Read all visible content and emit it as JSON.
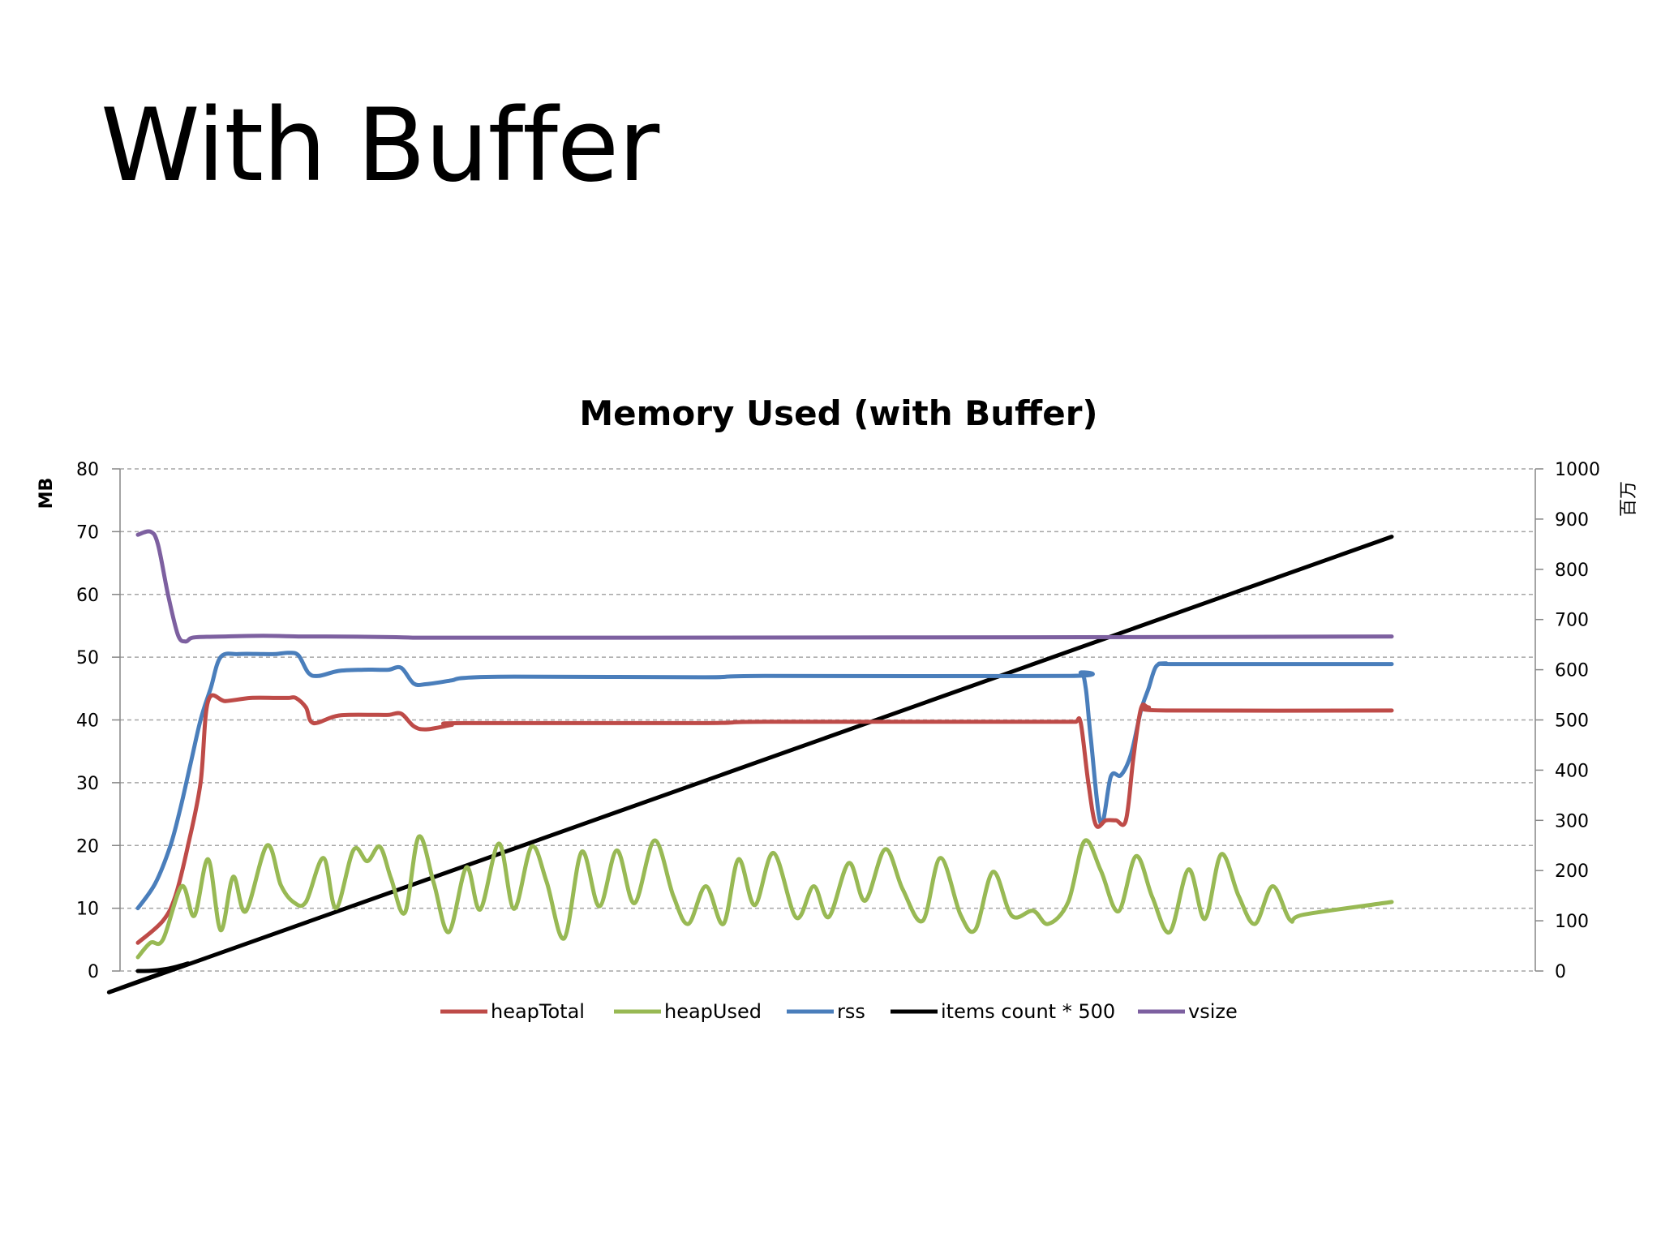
{
  "slide": {
    "title": "With Buffer"
  },
  "chart_data": {
    "type": "line",
    "title": "Memory Used (with Buffer)",
    "ylabel": "MB",
    "y2label": "百万",
    "ylim": [
      0,
      80
    ],
    "yticks": [
      0,
      10,
      20,
      30,
      40,
      50,
      60,
      70,
      80
    ],
    "y2lim": [
      0,
      1000
    ],
    "y2ticks": [
      0,
      100,
      200,
      300,
      400,
      500,
      600,
      700,
      800,
      900,
      1000
    ],
    "xlim": [
      0,
      100
    ],
    "grid": true,
    "legend_position": "bottom",
    "series": [
      {
        "name": "heapTotal",
        "color": "#be4b48",
        "axis": "left",
        "points": [
          [
            0,
            4.5
          ],
          [
            2,
            8
          ],
          [
            3,
            12
          ],
          [
            4,
            20
          ],
          [
            5,
            30
          ],
          [
            5.6,
            43
          ],
          [
            7,
            43
          ],
          [
            9,
            43.5
          ],
          [
            11,
            43.5
          ],
          [
            12,
            43.5
          ],
          [
            12.6,
            43.5
          ],
          [
            13.4,
            42
          ],
          [
            14,
            39.5
          ],
          [
            16,
            40.7
          ],
          [
            19,
            40.8
          ],
          [
            20,
            40.8
          ],
          [
            21,
            41
          ],
          [
            22,
            39
          ],
          [
            23,
            38.5
          ],
          [
            25,
            39.2
          ],
          [
            26,
            39.5
          ],
          [
            45,
            39.5
          ],
          [
            50,
            39.7
          ],
          [
            70,
            39.7
          ],
          [
            74,
            39.7
          ],
          [
            74.8,
            39.7
          ],
          [
            75.2,
            39.5
          ],
          [
            75.8,
            30
          ],
          [
            76.4,
            23.3
          ],
          [
            77.2,
            24
          ],
          [
            78,
            24
          ],
          [
            78.8,
            24
          ],
          [
            79.4,
            34
          ],
          [
            80,
            41.8
          ],
          [
            80.6,
            42
          ],
          [
            82,
            41.5
          ],
          [
            100,
            41.5
          ]
        ]
      },
      {
        "name": "heapUsed",
        "color": "#98b954",
        "axis": "left",
        "points": [
          [
            0,
            2.2
          ],
          [
            1,
            4.5
          ],
          [
            2,
            5
          ],
          [
            3.5,
            13.5
          ],
          [
            4.5,
            8.8
          ],
          [
            5.6,
            17.8
          ],
          [
            6.6,
            6.5
          ],
          [
            7.6,
            15
          ],
          [
            8.6,
            9.5
          ],
          [
            10.3,
            20
          ],
          [
            11.4,
            13.7
          ],
          [
            12.4,
            11
          ],
          [
            13.4,
            11
          ],
          [
            14.8,
            18
          ],
          [
            15.8,
            10
          ],
          [
            17.2,
            19.3
          ],
          [
            18.3,
            17.5
          ],
          [
            19.3,
            19.8
          ],
          [
            20.2,
            14.7
          ],
          [
            21.3,
            9.3
          ],
          [
            22.4,
            21.4
          ],
          [
            23.6,
            14
          ],
          [
            24.8,
            6.2
          ],
          [
            26.2,
            16.5
          ],
          [
            27.3,
            9.8
          ],
          [
            28.8,
            20.3
          ],
          [
            30,
            9.9
          ],
          [
            31.4,
            19.8
          ],
          [
            32.6,
            14.2
          ],
          [
            34,
            5.2
          ],
          [
            35.4,
            19
          ],
          [
            36.8,
            10.3
          ],
          [
            38.2,
            19.2
          ],
          [
            39.6,
            10.8
          ],
          [
            41.2,
            20.8
          ],
          [
            42.7,
            12
          ],
          [
            43.9,
            7.5
          ],
          [
            45.3,
            13.5
          ],
          [
            46.7,
            7.5
          ],
          [
            47.9,
            17.8
          ],
          [
            49.2,
            10.5
          ],
          [
            50.7,
            18.8
          ],
          [
            52.5,
            8.5
          ],
          [
            53.9,
            13.5
          ],
          [
            55.1,
            8.6
          ],
          [
            56.7,
            17.2
          ],
          [
            58,
            11.2
          ],
          [
            59.6,
            19.4
          ],
          [
            61,
            13
          ],
          [
            62.6,
            8
          ],
          [
            64,
            18
          ],
          [
            65.6,
            9
          ],
          [
            66.8,
            6.6
          ],
          [
            68.2,
            15.8
          ],
          [
            69.7,
            8.8
          ],
          [
            71.4,
            9.6
          ],
          [
            72.6,
            7.5
          ],
          [
            74.2,
            11
          ],
          [
            75.5,
            20.7
          ],
          [
            76.8,
            16
          ],
          [
            78.2,
            9.5
          ],
          [
            79.6,
            18.3
          ],
          [
            80.9,
            11.8
          ],
          [
            82.3,
            6.2
          ],
          [
            83.8,
            16.2
          ],
          [
            85.1,
            8.3
          ],
          [
            86.4,
            18.6
          ],
          [
            87.8,
            11.9
          ],
          [
            89.1,
            7.5
          ],
          [
            90.5,
            13.5
          ],
          [
            91.9,
            8.1
          ],
          [
            93,
            9
          ],
          [
            100,
            11
          ]
        ]
      },
      {
        "name": "rss",
        "color": "#4a7ebb",
        "axis": "left",
        "points": [
          [
            0,
            10
          ],
          [
            1.4,
            14
          ],
          [
            2.6,
            20
          ],
          [
            3.4,
            26
          ],
          [
            4.2,
            33
          ],
          [
            5,
            40
          ],
          [
            5.8,
            45
          ],
          [
            6.6,
            50
          ],
          [
            8,
            50.5
          ],
          [
            10,
            50.5
          ],
          [
            11,
            50.5
          ],
          [
            12,
            50.7
          ],
          [
            12.8,
            50.3
          ],
          [
            13.6,
            47.5
          ],
          [
            14.4,
            47
          ],
          [
            16,
            47.8
          ],
          [
            18,
            48
          ],
          [
            19,
            48
          ],
          [
            20,
            48
          ],
          [
            21,
            48.3
          ],
          [
            22,
            45.8
          ],
          [
            23,
            45.7
          ],
          [
            25,
            46.3
          ],
          [
            26,
            46.7
          ],
          [
            30,
            46.9
          ],
          [
            45,
            46.8
          ],
          [
            50,
            47
          ],
          [
            74,
            47
          ],
          [
            75.2,
            47.5
          ],
          [
            75.6,
            45
          ],
          [
            76,
            37
          ],
          [
            76.8,
            23.5
          ],
          [
            77.6,
            31
          ],
          [
            78.4,
            31.2
          ],
          [
            79.2,
            34.5
          ],
          [
            80,
            41.5
          ],
          [
            80.6,
            45
          ],
          [
            81.2,
            48.5
          ],
          [
            82,
            49
          ],
          [
            83,
            48.9
          ],
          [
            100,
            48.9
          ]
        ]
      },
      {
        "name": "items count * 500",
        "color": "#000000",
        "axis": "right",
        "points": [
          [
            0,
            0
          ],
          [
            1,
            0.5
          ],
          [
            2,
            3
          ],
          [
            3,
            8
          ],
          [
            4,
            15
          ],
          [
            5,
            22
          ],
          [
            100,
            865
          ]
        ]
      },
      {
        "name": "vsize",
        "color": "#7d60a0",
        "axis": "left",
        "points": [
          [
            0,
            69.5
          ],
          [
            1,
            70
          ],
          [
            1.6,
            68
          ],
          [
            2.4,
            60
          ],
          [
            3.2,
            53.5
          ],
          [
            3.8,
            52.5
          ],
          [
            4.2,
            53
          ],
          [
            4.8,
            53.2
          ],
          [
            7,
            53.3
          ],
          [
            10,
            53.4
          ],
          [
            13,
            53.3
          ],
          [
            15,
            53.3
          ],
          [
            20,
            53.2
          ],
          [
            22,
            53.1
          ],
          [
            25,
            53.1
          ],
          [
            40,
            53.1
          ],
          [
            80,
            53.2
          ],
          [
            100,
            53.3
          ]
        ]
      }
    ]
  }
}
